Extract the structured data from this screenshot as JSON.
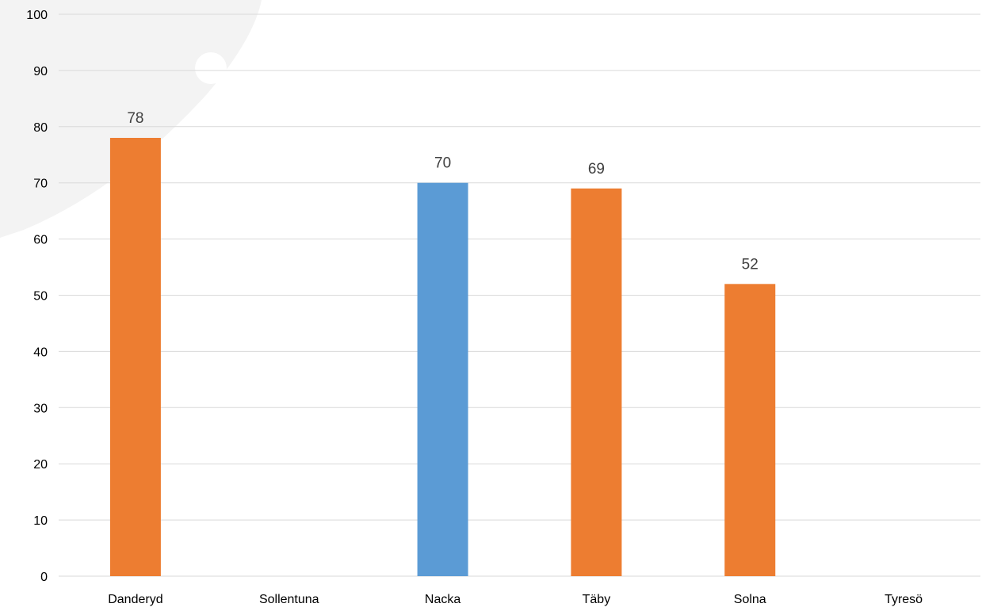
{
  "chart_data": {
    "type": "bar",
    "title": "",
    "xlabel": "",
    "ylabel": "",
    "categories": [
      "Danderyd",
      "Sollentuna",
      "Nacka",
      "Täby",
      "Solna",
      "Tyresö"
    ],
    "values": [
      78,
      null,
      70,
      69,
      52,
      null
    ],
    "data_labels": [
      "78",
      "",
      "70",
      "69",
      "52",
      ""
    ],
    "bar_colors": [
      "#ED7D31",
      "#ED7D31",
      "#5B9BD5",
      "#ED7D31",
      "#ED7D31",
      "#ED7D31"
    ],
    "ylim": [
      0,
      100
    ],
    "yticks": [
      "0",
      "10",
      "20",
      "30",
      "40",
      "50",
      "60",
      "70",
      "80",
      "90",
      "100"
    ],
    "grid": true,
    "legend": "none",
    "colors": {
      "gridline": "#D9D9D9",
      "axis_text": "#000000",
      "data_label_text": "#404040",
      "watermark": "#F3F3F3"
    }
  }
}
